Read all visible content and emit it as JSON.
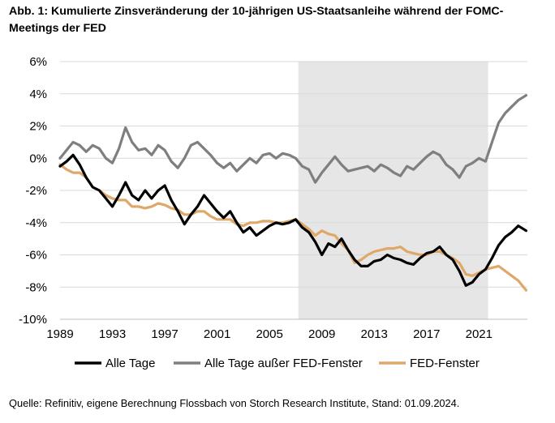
{
  "title": "Abb. 1: Kumulierte Zinsveränderung der 10-jährigen US-Staatsanleihe während der FOMC-Meetings der FED",
  "source": "Quelle: Refinitiv, eigene Berechnung Flossbach von Storch Research Institute, Stand: 01.09.2024.",
  "chart_data": {
    "type": "line",
    "title": "Abb. 1: Kumulierte Zinsveränderung der 10-jährigen US-Staatsanleihe während der FOMC-Meetings der FED",
    "xlabel": "",
    "ylabel": "",
    "xlim": [
      1989,
      2024.7
    ],
    "ylim": [
      -10,
      6
    ],
    "x_ticks": [
      "1989",
      "1993",
      "1997",
      "2001",
      "2005",
      "2009",
      "2013",
      "2017",
      "2021"
    ],
    "x_tick_values": [
      1989,
      1993,
      1997,
      2001,
      2005,
      2009,
      2013,
      2017,
      2021
    ],
    "y_ticks": [
      "6%",
      "4%",
      "2%",
      "0%",
      "-2%",
      "-4%",
      "-6%",
      "-8%",
      "-10%"
    ],
    "y_tick_values": [
      6,
      4,
      2,
      0,
      -2,
      -4,
      -6,
      -8,
      -10
    ],
    "grid": "horizontal",
    "shaded_period": [
      2007.2,
      2021.7
    ],
    "shaded_color": "#e6e6e6",
    "legend_position": "bottom",
    "series": [
      {
        "name": "Alle Tage",
        "color": "#000000",
        "x": [
          1989.0,
          1989.5,
          1990.0,
          1990.5,
          1991.0,
          1991.5,
          1992.0,
          1992.5,
          1993.0,
          1993.5,
          1994.0,
          1994.5,
          1995.0,
          1995.5,
          1996.0,
          1996.5,
          1997.0,
          1997.5,
          1998.0,
          1998.5,
          1999.0,
          1999.5,
          2000.0,
          2000.5,
          2001.0,
          2001.5,
          2002.0,
          2002.5,
          2003.0,
          2003.5,
          2004.0,
          2004.5,
          2005.0,
          2005.5,
          2006.0,
          2006.5,
          2007.0,
          2007.5,
          2008.0,
          2008.5,
          2009.0,
          2009.5,
          2010.0,
          2010.5,
          2011.0,
          2011.5,
          2012.0,
          2012.5,
          2013.0,
          2013.5,
          2014.0,
          2014.5,
          2015.0,
          2015.5,
          2016.0,
          2016.5,
          2017.0,
          2017.5,
          2018.0,
          2018.5,
          2019.0,
          2019.5,
          2020.0,
          2020.5,
          2021.0,
          2021.5,
          2022.0,
          2022.5,
          2023.0,
          2023.5,
          2024.0,
          2024.6
        ],
        "values": [
          -0.5,
          -0.2,
          0.2,
          -0.4,
          -1.2,
          -1.8,
          -2.0,
          -2.5,
          -3.0,
          -2.3,
          -1.5,
          -2.3,
          -2.6,
          -2.0,
          -2.5,
          -2.0,
          -1.7,
          -2.6,
          -3.3,
          -4.1,
          -3.5,
          -3.0,
          -2.3,
          -2.8,
          -3.3,
          -3.7,
          -3.3,
          -4.0,
          -4.6,
          -4.3,
          -4.8,
          -4.5,
          -4.2,
          -4.0,
          -4.1,
          -4.0,
          -3.8,
          -4.3,
          -4.6,
          -5.2,
          -6.0,
          -5.3,
          -5.5,
          -5.0,
          -5.7,
          -6.3,
          -6.7,
          -6.7,
          -6.4,
          -6.3,
          -6.0,
          -6.2,
          -6.3,
          -6.5,
          -6.6,
          -6.2,
          -5.9,
          -5.8,
          -5.5,
          -6.0,
          -6.3,
          -7.0,
          -7.9,
          -7.7,
          -7.2,
          -6.9,
          -6.2,
          -5.4,
          -4.9,
          -4.6,
          -4.2,
          -4.5
        ]
      },
      {
        "name": "Alle Tage außer FED-Fenster",
        "color": "#7f7f7f",
        "x": [
          1989.0,
          1989.5,
          1990.0,
          1990.5,
          1991.0,
          1991.5,
          1992.0,
          1992.5,
          1993.0,
          1993.5,
          1994.0,
          1994.5,
          1995.0,
          1995.5,
          1996.0,
          1996.5,
          1997.0,
          1997.5,
          1998.0,
          1998.5,
          1999.0,
          1999.5,
          2000.0,
          2000.5,
          2001.0,
          2001.5,
          2002.0,
          2002.5,
          2003.0,
          2003.5,
          2004.0,
          2004.5,
          2005.0,
          2005.5,
          2006.0,
          2006.5,
          2007.0,
          2007.5,
          2008.0,
          2008.5,
          2009.0,
          2009.5,
          2010.0,
          2010.5,
          2011.0,
          2011.5,
          2012.0,
          2012.5,
          2013.0,
          2013.5,
          2014.0,
          2014.5,
          2015.0,
          2015.5,
          2016.0,
          2016.5,
          2017.0,
          2017.5,
          2018.0,
          2018.5,
          2019.0,
          2019.5,
          2020.0,
          2020.5,
          2021.0,
          2021.5,
          2022.0,
          2022.5,
          2023.0,
          2023.5,
          2024.0,
          2024.6
        ],
        "values": [
          0.0,
          0.5,
          1.0,
          0.8,
          0.4,
          0.8,
          0.6,
          0.0,
          -0.3,
          0.6,
          1.9,
          1.0,
          0.5,
          0.6,
          0.2,
          0.8,
          0.5,
          -0.2,
          -0.6,
          0.0,
          0.8,
          1.0,
          0.6,
          0.2,
          -0.3,
          -0.6,
          -0.3,
          -0.8,
          -0.4,
          0.0,
          -0.3,
          0.2,
          0.3,
          0.0,
          0.3,
          0.2,
          0.0,
          -0.5,
          -0.7,
          -1.5,
          -0.9,
          -0.4,
          0.1,
          -0.4,
          -0.8,
          -0.7,
          -0.6,
          -0.5,
          -0.8,
          -0.4,
          -0.6,
          -0.9,
          -1.1,
          -0.5,
          -0.7,
          -0.3,
          0.1,
          0.4,
          0.2,
          -0.4,
          -0.7,
          -1.2,
          -0.5,
          -0.3,
          0.0,
          -0.2,
          1.0,
          2.2,
          2.8,
          3.2,
          3.6,
          3.9
        ]
      },
      {
        "name": "FED-Fenster",
        "color": "#dfa86a",
        "x": [
          1989.0,
          1989.5,
          1990.0,
          1990.5,
          1991.0,
          1991.5,
          1992.0,
          1992.5,
          1993.0,
          1993.5,
          1994.0,
          1994.5,
          1995.0,
          1995.5,
          1996.0,
          1996.5,
          1997.0,
          1997.5,
          1998.0,
          1998.5,
          1999.0,
          1999.5,
          2000.0,
          2000.5,
          2001.0,
          2001.5,
          2002.0,
          2002.5,
          2003.0,
          2003.5,
          2004.0,
          2004.5,
          2005.0,
          2005.5,
          2006.0,
          2006.5,
          2007.0,
          2007.5,
          2008.0,
          2008.5,
          2009.0,
          2009.5,
          2010.0,
          2010.5,
          2011.0,
          2011.5,
          2012.0,
          2012.5,
          2013.0,
          2013.5,
          2014.0,
          2014.5,
          2015.0,
          2015.5,
          2016.0,
          2016.5,
          2017.0,
          2017.5,
          2018.0,
          2018.5,
          2019.0,
          2019.5,
          2020.0,
          2020.5,
          2021.0,
          2021.5,
          2022.0,
          2022.5,
          2023.0,
          2023.5,
          2024.0,
          2024.6
        ],
        "values": [
          -0.4,
          -0.7,
          -0.9,
          -0.9,
          -1.2,
          -1.8,
          -2.0,
          -2.3,
          -2.5,
          -2.6,
          -2.6,
          -3.0,
          -3.0,
          -3.1,
          -3.0,
          -2.8,
          -2.9,
          -3.1,
          -3.2,
          -3.5,
          -3.5,
          -3.3,
          -3.3,
          -3.6,
          -3.8,
          -3.8,
          -3.8,
          -4.1,
          -4.2,
          -4.0,
          -4.0,
          -3.9,
          -3.9,
          -4.0,
          -4.0,
          -3.9,
          -3.8,
          -4.1,
          -4.4,
          -4.8,
          -4.5,
          -4.7,
          -4.8,
          -5.3,
          -5.7,
          -6.5,
          -6.3,
          -6.0,
          -5.8,
          -5.7,
          -5.6,
          -5.6,
          -5.5,
          -5.8,
          -5.9,
          -6.0,
          -6.0,
          -5.8,
          -5.8,
          -6.0,
          -6.2,
          -6.5,
          -7.2,
          -7.3,
          -7.1,
          -6.9,
          -6.8,
          -6.7,
          -7.0,
          -7.3,
          -7.6,
          -8.2
        ]
      }
    ]
  }
}
